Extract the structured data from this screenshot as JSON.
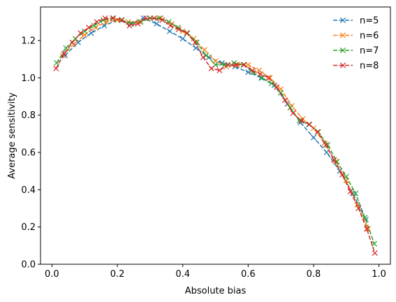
{
  "chart_data": {
    "type": "line",
    "title": "",
    "xlabel": "Absolute bias",
    "ylabel": "Average sensitivity",
    "xlim": [
      -0.035,
      1.035
    ],
    "ylim": [
      0.0,
      1.38
    ],
    "xticks": [
      0.0,
      0.2,
      0.4,
      0.6,
      0.8,
      1.0
    ],
    "xtick_labels": [
      "0.0",
      "0.2",
      "0.4",
      "0.6",
      "0.8",
      "1.0"
    ],
    "yticks": [
      0.0,
      0.2,
      0.4,
      0.6,
      0.8,
      1.0,
      1.2
    ],
    "ytick_labels": [
      "0.0",
      "0.2",
      "0.4",
      "0.6",
      "0.8",
      "1.0",
      "1.2"
    ],
    "grid": false,
    "legend_position": "top-right",
    "marker": "x",
    "line_style": "dashed",
    "series": [
      {
        "name": "n=5",
        "color": "#1f77b4",
        "x": [
          0.04,
          0.08,
          0.12,
          0.16,
          0.2,
          0.24,
          0.28,
          0.32,
          0.36,
          0.4,
          0.44,
          0.48,
          0.52,
          0.56,
          0.6,
          0.64,
          0.68,
          0.72,
          0.76,
          0.8,
          0.84,
          0.88,
          0.92,
          0.96
        ],
        "y": [
          1.12,
          1.19,
          1.24,
          1.28,
          1.31,
          1.29,
          1.32,
          1.29,
          1.25,
          1.21,
          1.16,
          1.11,
          1.08,
          1.06,
          1.03,
          1.0,
          0.96,
          0.86,
          0.76,
          0.68,
          0.6,
          0.5,
          0.38,
          0.24
        ]
      },
      {
        "name": "n=6",
        "color": "#ff7f0e",
        "x": [
          0.0333,
          0.0667,
          0.1,
          0.1333,
          0.1667,
          0.2,
          0.2333,
          0.2667,
          0.3,
          0.3333,
          0.3667,
          0.4,
          0.4333,
          0.4667,
          0.5,
          0.5333,
          0.5667,
          0.6,
          0.6333,
          0.6667,
          0.7,
          0.7333,
          0.7667,
          0.8,
          0.8333,
          0.8667,
          0.9,
          0.9333,
          0.9667
        ],
        "y": [
          1.12,
          1.18,
          1.23,
          1.27,
          1.3,
          1.31,
          1.3,
          1.3,
          1.32,
          1.32,
          1.29,
          1.25,
          1.21,
          1.15,
          1.09,
          1.06,
          1.07,
          1.07,
          1.04,
          1.0,
          0.94,
          0.85,
          0.78,
          0.73,
          0.65,
          0.55,
          0.45,
          0.32,
          0.19
        ]
      },
      {
        "name": "n=7",
        "color": "#2ca02c",
        "x": [
          0.0143,
          0.0429,
          0.0714,
          0.1,
          0.1286,
          0.1571,
          0.1857,
          0.2143,
          0.2429,
          0.2714,
          0.3,
          0.3286,
          0.3571,
          0.3857,
          0.4143,
          0.4429,
          0.4714,
          0.5,
          0.5286,
          0.5571,
          0.5857,
          0.6143,
          0.6429,
          0.6714,
          0.7,
          0.7286,
          0.7571,
          0.7857,
          0.8143,
          0.8429,
          0.8714,
          0.9,
          0.9286,
          0.9571,
          0.9857
        ],
        "y": [
          1.08,
          1.16,
          1.21,
          1.25,
          1.28,
          1.31,
          1.32,
          1.31,
          1.29,
          1.3,
          1.32,
          1.32,
          1.3,
          1.27,
          1.24,
          1.19,
          1.12,
          1.07,
          1.07,
          1.08,
          1.07,
          1.03,
          1.0,
          0.97,
          0.92,
          0.84,
          0.77,
          0.75,
          0.71,
          0.64,
          0.55,
          0.47,
          0.38,
          0.25,
          0.11
        ]
      },
      {
        "name": "n=8",
        "color": "#d62728",
        "x": [
          0.0125,
          0.0375,
          0.0625,
          0.0875,
          0.1125,
          0.1375,
          0.1625,
          0.1875,
          0.2125,
          0.2375,
          0.2625,
          0.2875,
          0.3125,
          0.3375,
          0.3625,
          0.3875,
          0.4125,
          0.4375,
          0.4625,
          0.4875,
          0.5125,
          0.5375,
          0.5625,
          0.5875,
          0.6125,
          0.6375,
          0.6625,
          0.6875,
          0.7125,
          0.7375,
          0.7625,
          0.7875,
          0.8125,
          0.8375,
          0.8625,
          0.8875,
          0.9125,
          0.9375,
          0.9625,
          0.9875
        ],
        "y": [
          1.05,
          1.13,
          1.19,
          1.24,
          1.27,
          1.3,
          1.32,
          1.32,
          1.31,
          1.28,
          1.29,
          1.32,
          1.32,
          1.31,
          1.28,
          1.26,
          1.24,
          1.19,
          1.11,
          1.05,
          1.04,
          1.07,
          1.07,
          1.07,
          1.04,
          1.02,
          1.0,
          0.95,
          0.88,
          0.81,
          0.77,
          0.75,
          0.71,
          0.64,
          0.56,
          0.48,
          0.39,
          0.3,
          0.19,
          0.06
        ]
      }
    ]
  }
}
